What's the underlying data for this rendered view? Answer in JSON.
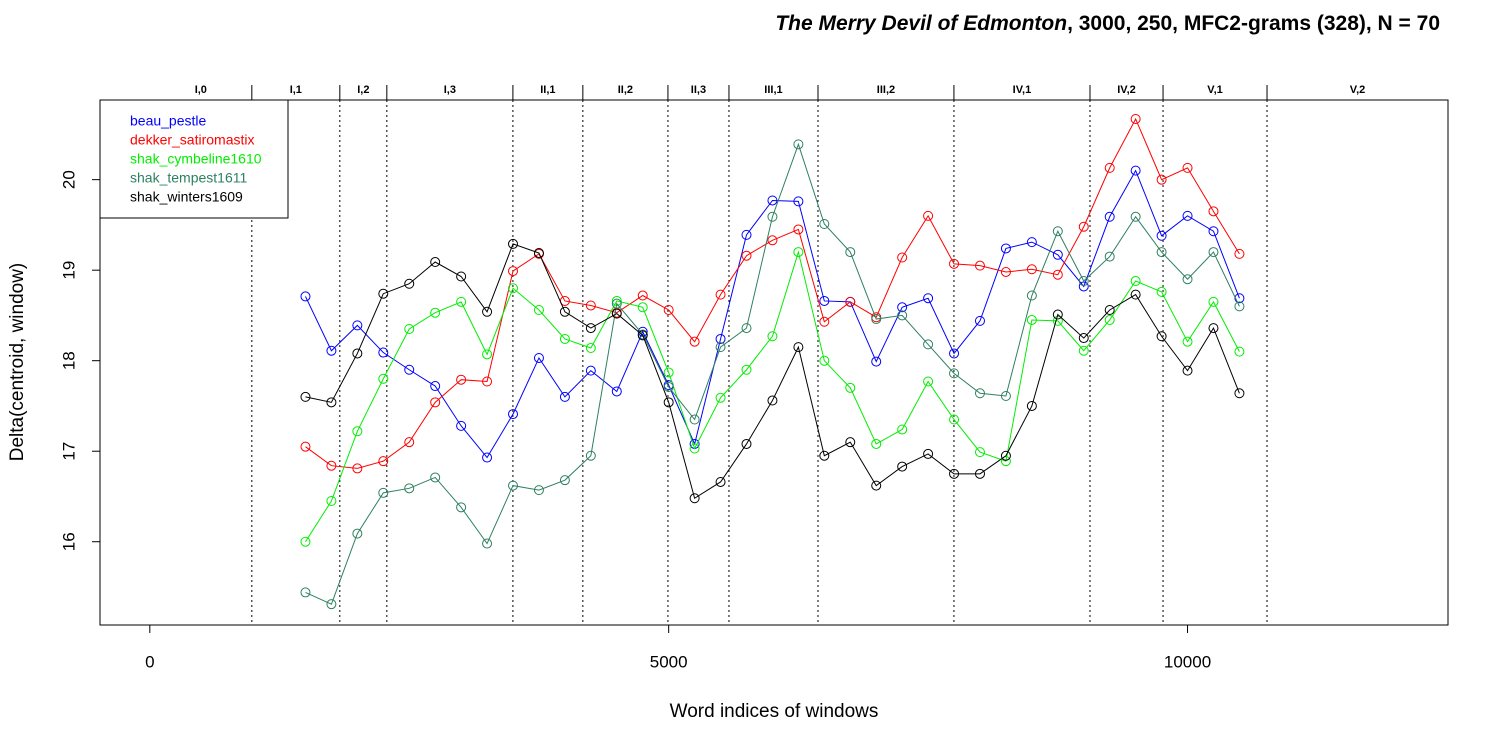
{
  "chart_data": {
    "type": "line",
    "title_italic": "The Merry Devil of Edmonton",
    "title_rest": ", 3000, 250, MFC2-grams (328), N = 70",
    "x_label": "Word indices of windows",
    "y_label": "Delta(centroid, window)",
    "xlim": [
      -480,
      12510
    ],
    "ylim": [
      15.08,
      20.88
    ],
    "xticks": [
      0,
      5000,
      10000
    ],
    "yticks": [
      16,
      17,
      18,
      19,
      20
    ],
    "legend": "top-left",
    "scenes": {
      "labels": [
        "I,0",
        "I,1",
        "I,2",
        "I,3",
        "II,1",
        "II,2",
        "II,3",
        "III,1",
        "III,2",
        "IV,1",
        "IV,2",
        "V,1",
        "V,2"
      ],
      "boundaries": [
        983,
        1831,
        2284,
        3499,
        4173,
        4993,
        5581,
        6439,
        7749,
        9060,
        9764,
        10766
      ]
    },
    "x": [
      1500,
      1750,
      2000,
      2250,
      2500,
      2750,
      3000,
      3250,
      3500,
      3750,
      4000,
      4250,
      4500,
      4750,
      5000,
      5250,
      5500,
      5750,
      6000,
      6250,
      6500,
      6750,
      7000,
      7250,
      7500,
      7750,
      8000,
      8250,
      8500,
      8750,
      9000,
      9250,
      9500,
      9750,
      10000,
      10250,
      10500
    ],
    "series": [
      {
        "name": "beau_pestle",
        "color": "#0000ff",
        "values": [
          18.71,
          18.11,
          18.39,
          18.09,
          17.9,
          17.72,
          17.28,
          16.93,
          17.41,
          18.03,
          17.6,
          17.89,
          17.66,
          18.32,
          17.73,
          17.08,
          18.24,
          19.39,
          19.77,
          19.76,
          18.66,
          18.65,
          17.99,
          18.59,
          18.69,
          18.08,
          18.44,
          19.24,
          19.31,
          19.17,
          18.82,
          19.59,
          20.1,
          19.38,
          19.6,
          19.43,
          18.69
        ]
      },
      {
        "name": "dekker_satiromastix",
        "color": "#ff0000",
        "values": [
          17.05,
          16.84,
          16.81,
          16.89,
          17.1,
          17.54,
          17.79,
          17.77,
          18.99,
          19.18,
          18.66,
          18.61,
          18.53,
          18.72,
          18.56,
          18.21,
          18.73,
          19.16,
          19.33,
          19.45,
          18.43,
          18.65,
          18.48,
          19.14,
          19.6,
          19.07,
          19.05,
          18.98,
          19.01,
          18.95,
          19.48,
          20.13,
          20.67,
          20.0,
          20.13,
          19.65,
          19.18
        ]
      },
      {
        "name": "shak_cymbeline1610",
        "color": "#00ee00",
        "values": [
          16.0,
          16.45,
          17.22,
          17.8,
          18.35,
          18.53,
          18.65,
          18.07,
          18.8,
          18.56,
          18.24,
          18.14,
          18.66,
          18.59,
          17.87,
          17.03,
          17.59,
          17.9,
          18.27,
          19.2,
          18.0,
          17.7,
          17.08,
          17.24,
          17.77,
          17.35,
          16.99,
          16.89,
          18.45,
          18.44,
          18.11,
          18.45,
          18.88,
          18.76,
          18.21,
          18.65,
          18.1
        ]
      },
      {
        "name": "shak_tempest1611",
        "color": "#2e8060",
        "values": [
          15.44,
          15.31,
          16.09,
          16.54,
          16.59,
          16.71,
          16.38,
          15.98,
          16.62,
          16.57,
          16.68,
          16.95,
          18.63,
          18.29,
          17.71,
          17.35,
          18.15,
          18.36,
          19.59,
          20.39,
          19.51,
          19.2,
          18.46,
          18.5,
          18.18,
          17.86,
          17.64,
          17.61,
          18.72,
          19.43,
          18.88,
          19.15,
          19.59,
          19.2,
          18.9,
          19.2,
          18.6
        ]
      },
      {
        "name": "shak_winters1609",
        "color": "#000000",
        "values": [
          17.6,
          17.54,
          18.08,
          18.74,
          18.85,
          19.09,
          18.93,
          18.54,
          19.29,
          19.19,
          18.54,
          18.36,
          18.52,
          18.28,
          17.54,
          16.48,
          16.66,
          17.08,
          17.56,
          18.15,
          16.95,
          17.1,
          16.62,
          16.83,
          16.97,
          16.75,
          16.75,
          16.95,
          17.5,
          18.51,
          18.25,
          18.56,
          18.73,
          18.27,
          17.89,
          18.36,
          17.64
        ]
      }
    ]
  }
}
